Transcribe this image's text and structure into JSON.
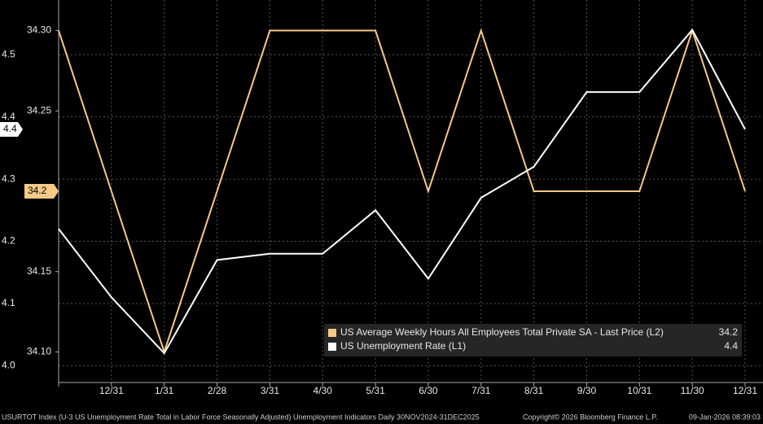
{
  "chart_data": {
    "type": "line",
    "categories": [
      null,
      "12/31",
      "1/31",
      "2/28",
      "3/31",
      "4/30",
      "5/31",
      "6/30",
      "7/31",
      "8/31",
      "9/30",
      "10/31",
      "11/30",
      "12/31"
    ],
    "series": [
      {
        "name": "US Average Weekly Hours All Employees Total Private SA - Last Price (L2)",
        "color": "#f6c987",
        "axis": "y2",
        "last_value_label": "34.2",
        "values": [
          34.3,
          34.2,
          34.1,
          34.2,
          34.3,
          34.3,
          34.3,
          34.2,
          34.3,
          34.2,
          34.2,
          34.2,
          34.3,
          34.2
        ]
      },
      {
        "name": "US Unemployment Rate (L1)",
        "color": "#ffffff",
        "last_value_label": "4.4",
        "values": [
          4.22,
          4.11,
          4.02,
          4.17,
          4.18,
          4.18,
          4.25,
          4.14,
          4.27,
          4.32,
          4.44,
          4.44,
          4.54,
          4.38
        ]
      }
    ],
    "ylim": [
      3.973,
      4.588
    ],
    "yticks": [
      {
        "value": 4.0,
        "label": "4.0"
      },
      4.1,
      4.2,
      4.3,
      4.4,
      4.5
    ],
    "y2lim": [
      34.081,
      34.319
    ],
    "y2ticks": [
      {
        "value": 34.1,
        "label": "34.10"
      },
      34.15,
      34.25,
      {
        "value": 34.3,
        "label": "34.30"
      }
    ],
    "grid": true,
    "footer": {
      "left": "USURTOT Index (U-3 US Unemployment Rate Total in Labor Force Seasonally Adjusted) Unemployment Indicators Daily 30NOV2024-31DEC2025",
      "copyright": "Copyright© 2026 Bloomberg Finance L.P.",
      "timestamp": "09-Jan-2026 08:39:03"
    }
  }
}
